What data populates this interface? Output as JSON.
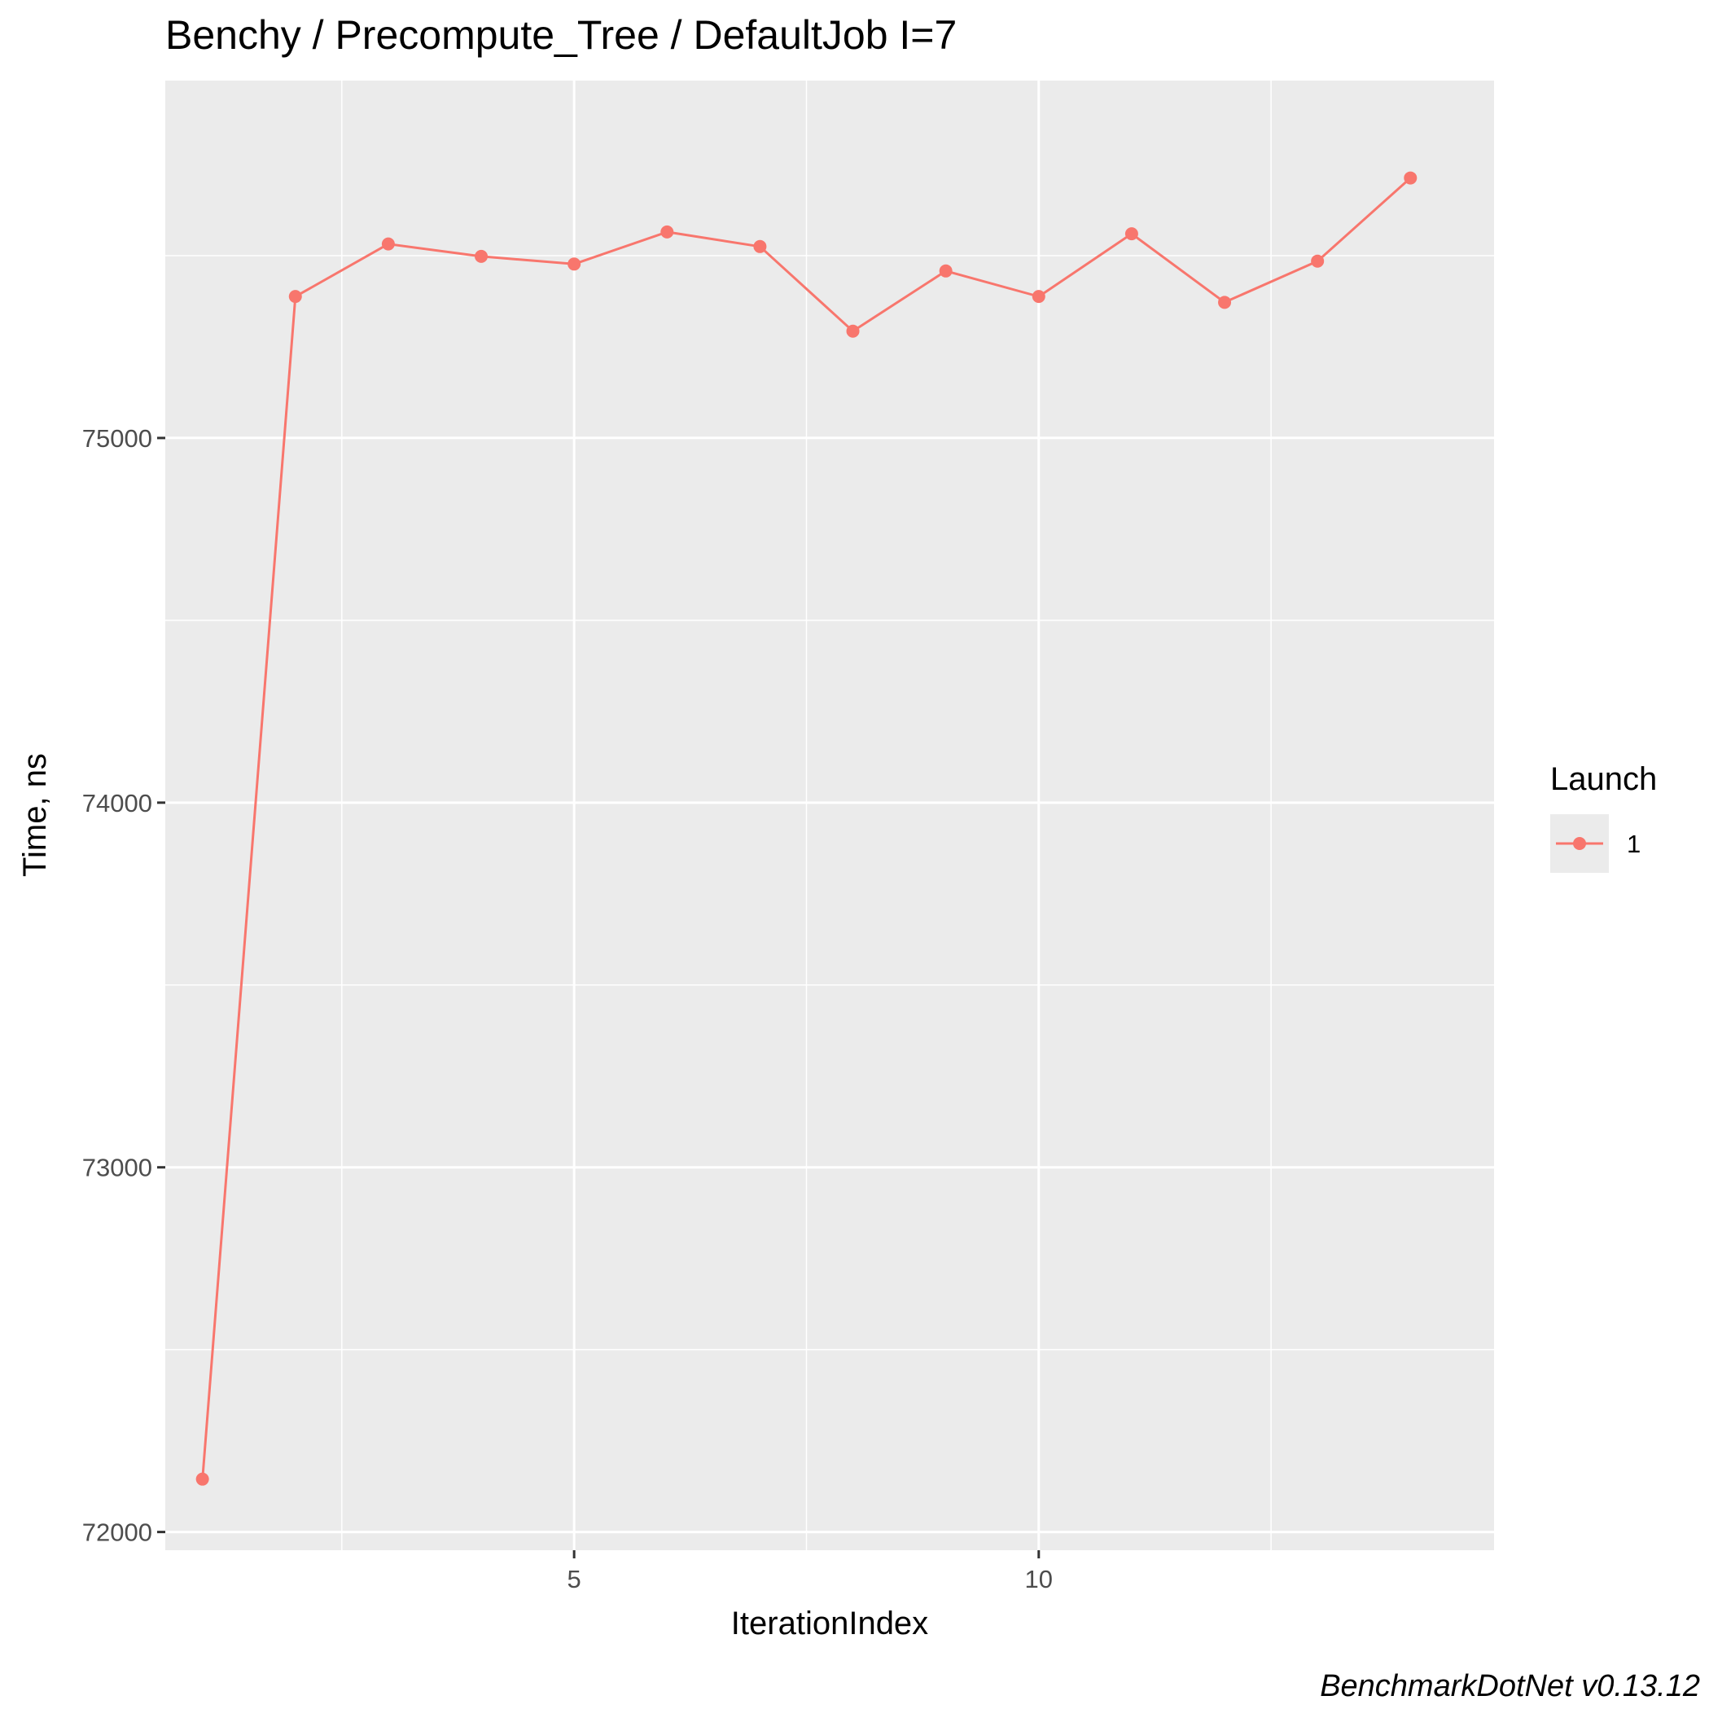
{
  "chart_data": {
    "type": "line",
    "title": "Benchy / Precompute_Tree / DefaultJob I=7",
    "xlabel": "IterationIndex",
    "ylabel": "Time, ns",
    "caption": "BenchmarkDotNet v0.13.12",
    "xlim": [
      0.6,
      14.9
    ],
    "ylim": [
      71950,
      75980
    ],
    "x_ticks": [
      5,
      10
    ],
    "y_ticks": [
      72000,
      73000,
      74000,
      75000
    ],
    "grid": true,
    "legend": {
      "title": "Launch",
      "position": "right"
    },
    "series": [
      {
        "name": "1",
        "color": "#F8766D",
        "x": [
          1,
          2,
          3,
          4,
          5,
          6,
          7,
          8,
          9,
          10,
          11,
          12,
          13,
          14
        ],
        "y": [
          72145,
          75388,
          75532,
          75498,
          75477,
          75565,
          75525,
          75293,
          75458,
          75388,
          75560,
          75372,
          75485,
          75713
        ]
      }
    ]
  }
}
